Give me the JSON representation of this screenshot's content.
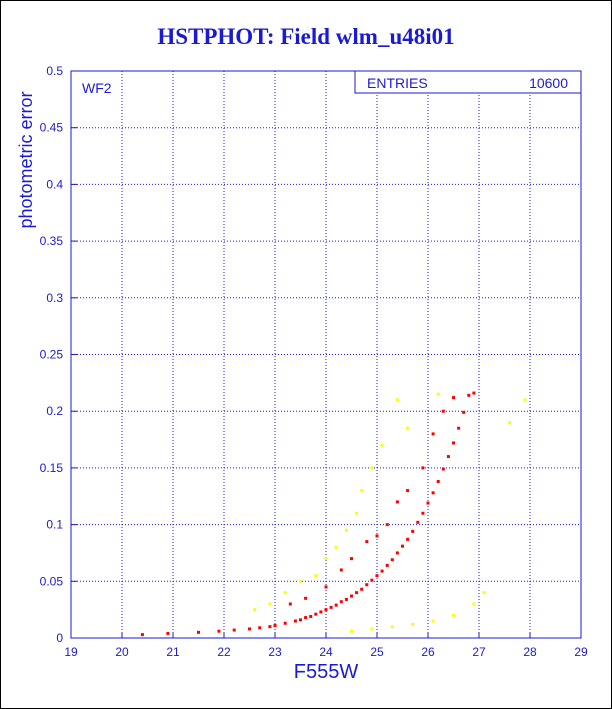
{
  "title": "HSTPHOT: Field wlm_u48i01",
  "chart_data": {
    "type": "scatter",
    "title": "HSTPHOT: Field wlm_u48i01",
    "xlabel": "F555W",
    "ylabel": "photometric error",
    "xlim": [
      19,
      29
    ],
    "ylim": [
      0,
      0.5
    ],
    "x_ticks": [
      "19",
      "20",
      "21",
      "22",
      "23",
      "24",
      "25",
      "26",
      "27",
      "28",
      "29"
    ],
    "y_ticks": [
      "0",
      "0.05",
      "0.1",
      "0.15",
      "0.2",
      "0.25",
      "0.3",
      "0.35",
      "0.4",
      "0.45",
      "0.5"
    ],
    "grid": true,
    "panel_label": "WF2",
    "stats_box": {
      "label": "ENTRIES",
      "value": "10600"
    },
    "series": [
      {
        "color": "#ff0000",
        "points": [
          [
            20.4,
            0.003
          ],
          [
            20.9,
            0.004
          ],
          [
            21.5,
            0.005
          ],
          [
            21.9,
            0.006
          ],
          [
            22.2,
            0.007
          ],
          [
            22.5,
            0.008
          ],
          [
            22.7,
            0.009
          ],
          [
            22.9,
            0.01
          ],
          [
            23.0,
            0.011
          ],
          [
            23.2,
            0.013
          ],
          [
            23.4,
            0.015
          ],
          [
            23.5,
            0.016
          ],
          [
            23.6,
            0.018
          ],
          [
            23.7,
            0.019
          ],
          [
            23.8,
            0.021
          ],
          [
            23.9,
            0.023
          ],
          [
            24.0,
            0.025
          ],
          [
            24.1,
            0.027
          ],
          [
            24.2,
            0.029
          ],
          [
            24.3,
            0.032
          ],
          [
            24.4,
            0.034
          ],
          [
            24.5,
            0.037
          ],
          [
            24.6,
            0.04
          ],
          [
            24.7,
            0.043
          ],
          [
            24.8,
            0.047
          ],
          [
            24.9,
            0.051
          ],
          [
            25.0,
            0.055
          ],
          [
            25.1,
            0.059
          ],
          [
            25.2,
            0.064
          ],
          [
            25.3,
            0.069
          ],
          [
            25.4,
            0.075
          ],
          [
            25.5,
            0.081
          ],
          [
            25.6,
            0.087
          ],
          [
            25.7,
            0.094
          ],
          [
            25.8,
            0.102
          ],
          [
            25.9,
            0.11
          ],
          [
            26.0,
            0.119
          ],
          [
            26.1,
            0.128
          ],
          [
            26.2,
            0.138
          ],
          [
            26.3,
            0.149
          ],
          [
            26.4,
            0.16
          ],
          [
            26.5,
            0.172
          ],
          [
            26.6,
            0.185
          ],
          [
            26.7,
            0.199
          ],
          [
            26.8,
            0.214
          ],
          [
            26.9,
            0.216
          ],
          [
            23.3,
            0.03
          ],
          [
            23.6,
            0.035
          ],
          [
            24.0,
            0.045
          ],
          [
            24.3,
            0.06
          ],
          [
            24.5,
            0.07
          ],
          [
            24.8,
            0.085
          ],
          [
            25.0,
            0.09
          ],
          [
            25.2,
            0.1
          ],
          [
            25.4,
            0.12
          ],
          [
            25.6,
            0.13
          ],
          [
            25.9,
            0.15
          ],
          [
            26.1,
            0.18
          ],
          [
            26.3,
            0.2
          ],
          [
            26.5,
            0.212
          ]
        ]
      },
      {
        "color": "#ffff00",
        "points": [
          [
            22.6,
            0.025
          ],
          [
            22.9,
            0.03
          ],
          [
            23.2,
            0.04
          ],
          [
            23.5,
            0.05
          ],
          [
            23.8,
            0.055
          ],
          [
            24.0,
            0.07
          ],
          [
            24.2,
            0.08
          ],
          [
            24.4,
            0.095
          ],
          [
            24.6,
            0.11
          ],
          [
            24.7,
            0.13
          ],
          [
            24.9,
            0.15
          ],
          [
            25.1,
            0.17
          ],
          [
            25.4,
            0.21
          ],
          [
            25.6,
            0.185
          ],
          [
            26.2,
            0.215
          ],
          [
            24.5,
            0.006
          ],
          [
            24.9,
            0.008
          ],
          [
            25.3,
            0.01
          ],
          [
            25.7,
            0.012
          ],
          [
            26.1,
            0.015
          ],
          [
            26.5,
            0.02
          ],
          [
            26.9,
            0.03
          ],
          [
            27.1,
            0.04
          ],
          [
            27.6,
            0.19
          ],
          [
            27.9,
            0.21
          ]
        ]
      }
    ]
  }
}
